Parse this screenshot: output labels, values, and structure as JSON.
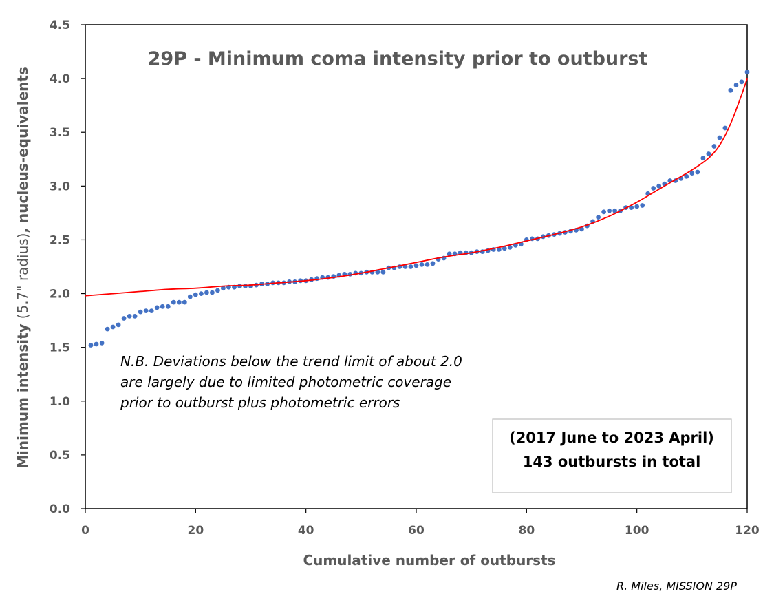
{
  "chart_data": {
    "type": "scatter",
    "title": "29P - Minimum coma intensity prior to outburst",
    "xlabel": "Cumulative number of outbursts",
    "ylabel_bold_start": "Minimum intensity ",
    "ylabel_light": "(5.7\" radius)",
    "ylabel_bold_end": ", nucleus-equivalents",
    "xlim": [
      0,
      120
    ],
    "ylim": [
      0,
      4.5
    ],
    "x_ticks": [
      "0",
      "20",
      "40",
      "60",
      "80",
      "100",
      "120"
    ],
    "y_ticks": [
      "0.0",
      "0.5",
      "1.0",
      "1.5",
      "2.0",
      "2.5",
      "3.0",
      "3.5",
      "4.0",
      "4.5"
    ],
    "grid": false,
    "point_color": "#4472c4",
    "trend_color": "#ff0000",
    "series": [
      {
        "kind": "points",
        "x": [
          1,
          2,
          3,
          4,
          5,
          6,
          7,
          8,
          9,
          10,
          11,
          12,
          13,
          14,
          15,
          16,
          17,
          18,
          19,
          20,
          21,
          22,
          23,
          24,
          25,
          26,
          27,
          28,
          29,
          30,
          31,
          32,
          33,
          34,
          35,
          36,
          37,
          38,
          39,
          40,
          41,
          42,
          43,
          44,
          45,
          46,
          47,
          48,
          49,
          50,
          51,
          52,
          53,
          54,
          55,
          56,
          57,
          58,
          59,
          60,
          61,
          62,
          63,
          64,
          65,
          66,
          67,
          68,
          69,
          70,
          71,
          72,
          73,
          74,
          75,
          76,
          77,
          78,
          79,
          80,
          81,
          82,
          83,
          84,
          85,
          86,
          87,
          88,
          89,
          90,
          91,
          92,
          93,
          94,
          95,
          96,
          97,
          98,
          99,
          100,
          101,
          102,
          103,
          104,
          105,
          106,
          107,
          108,
          109,
          110,
          111,
          112,
          113,
          114,
          115,
          116,
          117,
          118,
          119,
          120
        ],
        "y": [
          1.52,
          1.53,
          1.54,
          1.67,
          1.69,
          1.71,
          1.77,
          1.79,
          1.79,
          1.83,
          1.84,
          1.84,
          1.87,
          1.88,
          1.88,
          1.92,
          1.92,
          1.92,
          1.97,
          1.99,
          2.0,
          2.01,
          2.01,
          2.03,
          2.05,
          2.06,
          2.06,
          2.07,
          2.07,
          2.07,
          2.08,
          2.09,
          2.09,
          2.1,
          2.1,
          2.1,
          2.11,
          2.11,
          2.12,
          2.12,
          2.13,
          2.14,
          2.15,
          2.15,
          2.16,
          2.17,
          2.18,
          2.18,
          2.19,
          2.19,
          2.2,
          2.2,
          2.2,
          2.2,
          2.24,
          2.24,
          2.25,
          2.25,
          2.25,
          2.26,
          2.27,
          2.27,
          2.28,
          2.32,
          2.33,
          2.37,
          2.37,
          2.38,
          2.38,
          2.38,
          2.39,
          2.39,
          2.4,
          2.41,
          2.41,
          2.42,
          2.43,
          2.45,
          2.46,
          2.5,
          2.51,
          2.51,
          2.53,
          2.54,
          2.55,
          2.56,
          2.57,
          2.58,
          2.59,
          2.6,
          2.63,
          2.67,
          2.71,
          2.76,
          2.77,
          2.77,
          2.77,
          2.8,
          2.8,
          2.81,
          2.82,
          2.93,
          2.98,
          3.0,
          3.02,
          3.05,
          3.05,
          3.07,
          3.09,
          3.12,
          3.13,
          3.26,
          3.3,
          3.37,
          3.45,
          3.54,
          3.89,
          3.94,
          3.97,
          4.06
        ]
      },
      {
        "kind": "trend",
        "x": [
          0,
          5,
          10,
          15,
          20,
          25,
          30,
          35,
          40,
          45,
          50,
          55,
          60,
          65,
          70,
          75,
          80,
          85,
          90,
          95,
          100,
          103,
          106,
          110,
          113,
          115,
          117,
          119,
          120
        ],
        "y": [
          1.98,
          2.0,
          2.02,
          2.04,
          2.05,
          2.07,
          2.08,
          2.1,
          2.12,
          2.15,
          2.19,
          2.24,
          2.29,
          2.34,
          2.38,
          2.43,
          2.49,
          2.55,
          2.62,
          2.72,
          2.85,
          2.94,
          3.03,
          3.15,
          3.26,
          3.38,
          3.58,
          3.85,
          4.0
        ]
      }
    ],
    "note_lines": [
      "N.B. Deviations below the trend limit of about 2.0",
      "are largely due to limited photometric coverage",
      "prior to outburst plus photometric errors"
    ],
    "box_lines": [
      "(2017 June to 2023 April)",
      "143 outbursts in total"
    ],
    "credit": "R. Miles, MISSION 29P"
  }
}
